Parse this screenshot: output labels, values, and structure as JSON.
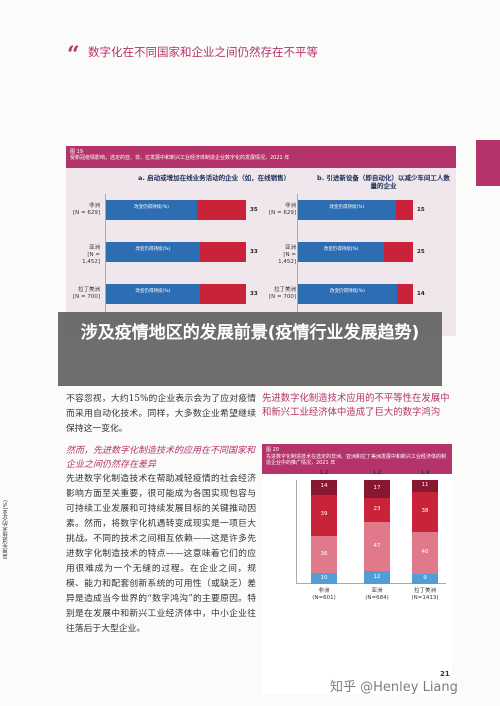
{
  "heading": {
    "quote_mark": "“",
    "text": "数字化在不同国家和企业之间仍然存在不平等"
  },
  "figure19": {
    "number": "图 19",
    "title": "受新冠疫情影响，选定的亚、非、拉发展中和新兴工业经济体制造企业数字化的发展情况，2021 年",
    "panel_a_title": "a. 启动或增加在线业务活动的企业（如，在线销售）",
    "panel_b_title": "b. 引进新设备（即自动化）以减少车间工人数量的企业",
    "seg_label": "改变仍得持续(%)",
    "rows": [
      {
        "region": "非洲",
        "n": "[N = 629]",
        "a_blue": 65,
        "a_red": 35,
        "b_blue": 85,
        "b_red": 15
      },
      {
        "region": "亚洲",
        "n": "[N = 1,452]",
        "a_blue": 67,
        "a_red": 33,
        "b_blue": 75,
        "b_red": 25
      },
      {
        "region": "拉丁美洲",
        "n": "[N = 700]",
        "a_blue": 67,
        "a_red": 33,
        "b_blue": 86,
        "b_red": 14
      }
    ]
  },
  "overlay": {
    "text": "涉及疫情地区的发展前景(疫情行业发展趋势)"
  },
  "para1": "不容忽视，大约15%的企业表示会为了应对疫情而采用自动化技术。同样，大多数企业希望继续保持这一变化。",
  "subhead": "然而，先进数字化制造技术的应用在不同国家和企业之间仍然存在差异",
  "para2": "先进数字化制造技术在帮助减轻疫情的社会经济影响方面至关重要，很可能成为各国实现包容与可持续工业发展和可持续发展目标的关键推动因素。然而，将数字化机遇转变成现实是一项巨大挑战。不同的技术之间相互依赖——这是许多先进数字化制造技术的特点——这意味着它们的应用很难成为一个无缝的过程。在企业之间，规模、能力和配套创新系统的可用性（或缺乏）差异是造成当今世界的“数字鸿沟”的主要原因。特别是在发展中和新兴工业经济体中，中小企业往往落后于大型企业。",
  "sidebar_head": "先进数字化制造技术应用的不平等性在发展中和新兴工业经济体中造成了巨大的数字鸿沟",
  "figure20": {
    "number": "图 20",
    "title": "先进数字化制造技术在选定的非洲、亚洲和拉丁美洲发展中和新兴工业经济体的制造企业中的推广情况，2021 年",
    "ylabel": "采用先进技术的企业(%)",
    "columns": [
      {
        "region": "非洲",
        "n": "(N=601)",
        "top": "1.2",
        "segments": [
          10,
          36,
          39,
          14
        ]
      },
      {
        "region": "亚洲",
        "n": "(N=684)",
        "top": "1.2",
        "segments": [
          12,
          47,
          23,
          17
        ]
      },
      {
        "region": "拉丁美洲",
        "n": "(N=1413)",
        "top": "1.9",
        "segments": [
          9,
          40,
          38,
          11
        ]
      }
    ]
  },
  "watermark": "知乎 @Henley Liang",
  "page_number": "21"
}
